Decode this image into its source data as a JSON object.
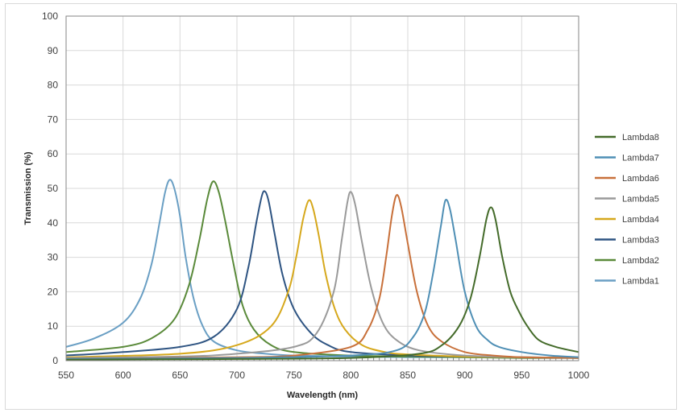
{
  "chart_data": {
    "type": "line",
    "xlabel": "Wavelength (nm)",
    "ylabel": "Transmission (%)",
    "xlim": [
      550,
      1000
    ],
    "ylim": [
      0,
      100
    ],
    "xticks": [
      550,
      600,
      650,
      700,
      750,
      800,
      850,
      900,
      950,
      1000
    ],
    "yticks": [
      0,
      10,
      20,
      30,
      40,
      50,
      60,
      70,
      80,
      90,
      100
    ],
    "grid": true,
    "legend_position": "right",
    "legend_order": [
      "Lambda8",
      "Lambda7",
      "Lambda6",
      "Lambda5",
      "Lambda4",
      "Lambda3",
      "Lambda2",
      "Lambda1"
    ],
    "series": [
      {
        "name": "Lambda1",
        "color": "#6a9fc4",
        "x": [
          550,
          575,
          600,
          615,
          625,
          632,
          637,
          641,
          645,
          650,
          655,
          662,
          670,
          680,
          700,
          725,
          750,
          800,
          850,
          900,
          950,
          1000
        ],
        "y": [
          4,
          6.5,
          11,
          18,
          28,
          40,
          49,
          52.5,
          50,
          42,
          30,
          18,
          10,
          5.5,
          3,
          2,
          1.5,
          1.2,
          1,
          1,
          0.8,
          0.8
        ]
      },
      {
        "name": "Lambda2",
        "color": "#5a8a3a",
        "x": [
          550,
          600,
          625,
          645,
          658,
          667,
          674,
          679,
          684,
          690,
          697,
          705,
          715,
          730,
          750,
          800,
          850,
          900,
          950,
          1000
        ],
        "y": [
          2.5,
          4,
          6.5,
          12,
          22,
          35,
          47,
          52,
          49,
          40,
          28,
          16,
          9,
          4.5,
          2.5,
          1.5,
          1.2,
          1,
          0.8,
          0.8
        ]
      },
      {
        "name": "Lambda3",
        "color": "#2e5482",
        "x": [
          550,
          600,
          650,
          680,
          700,
          710,
          717,
          722,
          725,
          728,
          733,
          740,
          750,
          765,
          780,
          800,
          850,
          900,
          950,
          1000
        ],
        "y": [
          1.5,
          2.5,
          4,
          7,
          15,
          27,
          40,
          48,
          49,
          46,
          37,
          25,
          15,
          8,
          4.5,
          2.5,
          1.5,
          1.2,
          1,
          0.8
        ]
      },
      {
        "name": "Lambda4",
        "color": "#d6a81c",
        "x": [
          550,
          650,
          700,
          730,
          745,
          752,
          758,
          763,
          767,
          772,
          778,
          786,
          795,
          810,
          830,
          850,
          900,
          950,
          1000
        ],
        "y": [
          1,
          2,
          4.5,
          10,
          20,
          30,
          41,
          46.5,
          44,
          36,
          25,
          15,
          9,
          4.5,
          2.5,
          1.8,
          1.2,
          1,
          0.8
        ]
      },
      {
        "name": "Lambda5",
        "color": "#9a9a9a",
        "x": [
          550,
          650,
          700,
          750,
          770,
          785,
          792,
          797,
          800,
          804,
          810,
          818,
          828,
          840,
          860,
          900,
          950,
          1000
        ],
        "y": [
          0.8,
          1.2,
          2,
          4,
          8,
          20,
          35,
          46,
          49,
          45,
          34,
          21,
          11,
          6,
          3,
          1.5,
          1,
          0.8
        ]
      },
      {
        "name": "Lambda6",
        "color": "#c8703a",
        "x": [
          550,
          700,
          750,
          800,
          815,
          825,
          831,
          836,
          840,
          844,
          850,
          858,
          868,
          880,
          900,
          925,
          950,
          1000
        ],
        "y": [
          0.5,
          1,
          1.5,
          4,
          9,
          18,
          30,
          42,
          48,
          45,
          34,
          20,
          10,
          5.5,
          2.5,
          1.5,
          1,
          0.8
        ]
      },
      {
        "name": "Lambda7",
        "color": "#4f8fb5",
        "x": [
          550,
          700,
          800,
          840,
          855,
          865,
          872,
          879,
          883,
          887,
          892,
          900,
          910,
          920,
          930,
          950,
          975,
          1000
        ],
        "y": [
          0.5,
          0.8,
          1.5,
          3,
          7,
          14,
          25,
          39,
          46.5,
          44,
          35,
          20,
          10,
          6,
          4,
          2.5,
          1.5,
          1
        ]
      },
      {
        "name": "Lambda8",
        "color": "#446b2a",
        "x": [
          550,
          700,
          800,
          860,
          880,
          895,
          905,
          913,
          919,
          923,
          927,
          933,
          940,
          948,
          955,
          965,
          980,
          1000
        ],
        "y": [
          0.3,
          0.5,
          0.8,
          2,
          4.5,
          10,
          18,
          30,
          41,
          44.5,
          41,
          30,
          20,
          14,
          10,
          6,
          4,
          2.5
        ]
      }
    ]
  }
}
